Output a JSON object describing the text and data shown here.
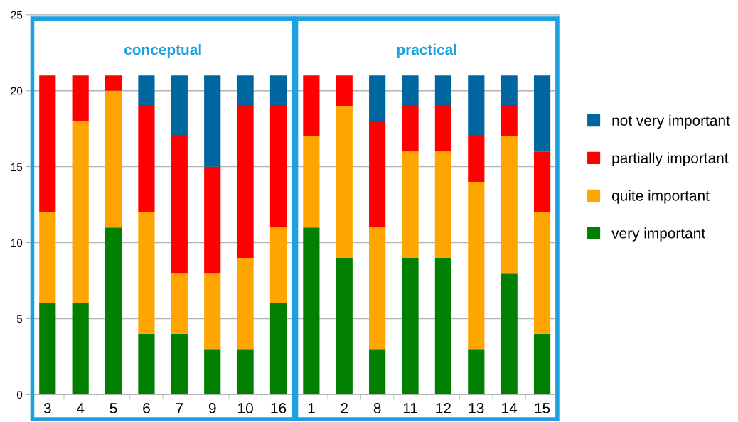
{
  "chart_data": {
    "type": "bar",
    "stacked": true,
    "categories": [
      "3",
      "4",
      "5",
      "6",
      "7",
      "9",
      "10",
      "16",
      "1",
      "2",
      "8",
      "11",
      "12",
      "13",
      "14",
      "15"
    ],
    "series": [
      {
        "name": "very important",
        "color": "#007f00",
        "values": [
          6,
          6,
          11,
          4,
          4,
          3,
          3,
          6,
          11,
          9,
          3,
          9,
          9,
          3,
          8,
          4
        ]
      },
      {
        "name": "quite important",
        "color": "#ffa500",
        "values": [
          6,
          12,
          9,
          8,
          4,
          5,
          6,
          5,
          6,
          10,
          8,
          7,
          7,
          11,
          9,
          8
        ]
      },
      {
        "name": "partially important",
        "color": "#ff0000",
        "values": [
          9,
          3,
          1,
          7,
          9,
          7,
          10,
          8,
          4,
          2,
          7,
          3,
          3,
          3,
          2,
          4
        ]
      },
      {
        "name": "not very important",
        "color": "#0066a0",
        "values": [
          0,
          0,
          0,
          2,
          4,
          6,
          2,
          2,
          0,
          0,
          3,
          2,
          2,
          4,
          2,
          5
        ]
      }
    ],
    "ylim": [
      0,
      25
    ],
    "yticks": [
      0,
      5,
      10,
      15,
      20,
      25
    ],
    "grid": "y",
    "legend": "right",
    "annotations": [
      "conceptual",
      "practical"
    ]
  }
}
